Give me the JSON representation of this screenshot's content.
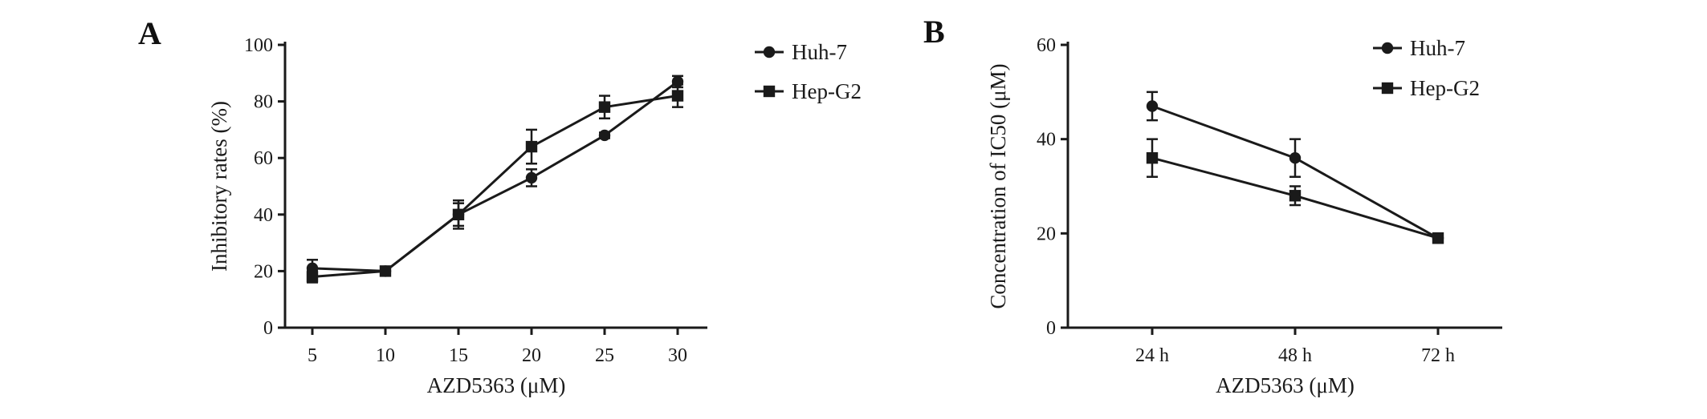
{
  "colors": {
    "foreground": "#1a1a1a",
    "background": "#ffffff"
  },
  "chart_data": [
    {
      "type": "line",
      "panel": "A",
      "title": "",
      "xlabel": "AZD5363 (μM)",
      "ylabel": "Inhibitory rates (%)",
      "categories": [
        5,
        10,
        15,
        20,
        25,
        30
      ],
      "ylim": [
        0,
        100
      ],
      "yticks": [
        0,
        20,
        40,
        60,
        80,
        100
      ],
      "grid": false,
      "legend_position": "top-right",
      "series": [
        {
          "name": "Huh-7",
          "marker": "circle",
          "values": [
            21,
            20,
            40,
            53,
            68,
            87
          ],
          "errors": [
            3,
            1,
            4,
            3,
            1,
            2
          ]
        },
        {
          "name": "Hep-G2",
          "marker": "square",
          "values": [
            18,
            20,
            40,
            64,
            78,
            82
          ],
          "errors": [
            2,
            1,
            5,
            6,
            4,
            4
          ]
        }
      ]
    },
    {
      "type": "line",
      "panel": "B",
      "title": "",
      "xlabel": "AZD5363 (μM)",
      "ylabel": "Concentration of IC50 (μM)",
      "categories": [
        "24 h",
        "48 h",
        "72 h"
      ],
      "ylim": [
        0,
        60
      ],
      "yticks": [
        0,
        20,
        40,
        60
      ],
      "grid": false,
      "legend_position": "top-right",
      "series": [
        {
          "name": "Huh-7",
          "marker": "circle",
          "values": [
            47,
            36,
            19
          ],
          "errors": [
            3,
            4,
            1
          ]
        },
        {
          "name": "Hep-G2",
          "marker": "square",
          "values": [
            36,
            28,
            19
          ],
          "errors": [
            4,
            2,
            1
          ]
        }
      ]
    }
  ]
}
